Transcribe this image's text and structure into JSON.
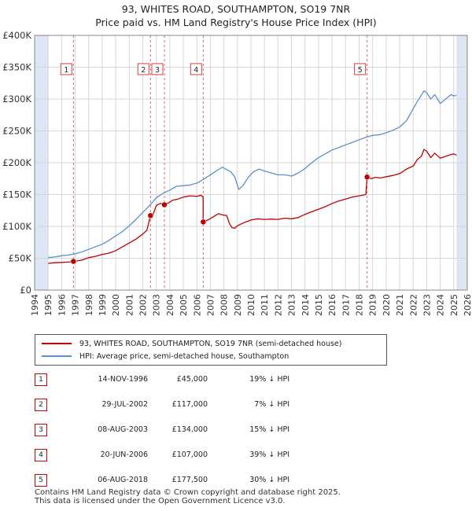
{
  "header": {
    "title": "93, WHITES ROAD, SOUTHAMPTON, SO19 7NR",
    "subtitle": "Price paid vs. HM Land Registry's House Price Index (HPI)"
  },
  "colors": {
    "price_line": "#c00000",
    "hpi_line": "#5b8fd0",
    "shade": "#dde6f4",
    "marker_border": "#d04040"
  },
  "chart_data": {
    "type": "line",
    "title": "Price paid vs. HM Land Registry's House Price Index (HPI)",
    "xlim": [
      1994,
      2026
    ],
    "ylim": [
      0,
      400000
    ],
    "x_ticks": [
      "1994",
      "1995",
      "1996",
      "1997",
      "1998",
      "1999",
      "2000",
      "2001",
      "2002",
      "2003",
      "2004",
      "2005",
      "2006",
      "2007",
      "2008",
      "2009",
      "2010",
      "2011",
      "2012",
      "2013",
      "2014",
      "2015",
      "2016",
      "2017",
      "2018",
      "2019",
      "2020",
      "2021",
      "2022",
      "2023",
      "2024",
      "2025",
      "2026"
    ],
    "y_ticks": [
      {
        "value": 0,
        "label": "£0"
      },
      {
        "value": 50000,
        "label": "£50K"
      },
      {
        "value": 100000,
        "label": "£100K"
      },
      {
        "value": 150000,
        "label": "£150K"
      },
      {
        "value": 200000,
        "label": "£200K"
      },
      {
        "value": 250000,
        "label": "£250K"
      },
      {
        "value": 300000,
        "label": "£300K"
      },
      {
        "value": 350000,
        "label": "£350K"
      },
      {
        "value": 400000,
        "label": "£400K"
      }
    ],
    "shaded_ranges": [
      [
        1994,
        1995.0
      ],
      [
        2025.2,
        2026
      ]
    ],
    "series": [
      {
        "name": "93, WHITES ROAD, SOUTHAMPTON, SO19 7NR (semi-detached house)",
        "x": [
          1995.0,
          1995.5,
          1996.0,
          1996.5,
          1996.87,
          1997.5,
          1998.0,
          1998.5,
          1999.0,
          1999.5,
          2000.0,
          2000.5,
          2001.0,
          2001.5,
          2002.0,
          2002.3,
          2002.57,
          2002.75,
          2003.0,
          2003.3,
          2003.6,
          2003.9,
          2004.2,
          2004.6,
          2005.0,
          2005.5,
          2006.0,
          2006.3,
          2006.46,
          2006.47,
          2006.8,
          2007.2,
          2007.6,
          2007.9,
          2008.2,
          2008.4,
          2008.6,
          2008.8,
          2009.0,
          2009.5,
          2010.0,
          2010.5,
          2011.0,
          2011.5,
          2012.0,
          2012.5,
          2013.0,
          2013.5,
          2014.0,
          2014.5,
          2015.0,
          2015.5,
          2016.0,
          2016.5,
          2017.0,
          2017.5,
          2018.0,
          2018.5,
          2018.59,
          2018.9,
          2019.2,
          2019.6,
          2020.0,
          2020.5,
          2021.0,
          2021.5,
          2022.0,
          2022.3,
          2022.6,
          2022.8,
          2023.0,
          2023.3,
          2023.6,
          2024.0,
          2024.4,
          2024.8,
          2025.0,
          2025.2
        ],
        "y": [
          42000,
          43000,
          43500,
          44000,
          45000,
          47000,
          51000,
          53000,
          56000,
          58000,
          62000,
          68000,
          74000,
          80000,
          88000,
          94000,
          117000,
          118000,
          133000,
          136000,
          134000,
          137000,
          141000,
          143000,
          146000,
          148000,
          147000,
          149000,
          146000,
          107000,
          110000,
          115000,
          120000,
          118000,
          117000,
          105000,
          98000,
          97000,
          101000,
          106000,
          110000,
          112000,
          111000,
          111500,
          111000,
          113000,
          112000,
          114000,
          119000,
          123000,
          127000,
          131000,
          136000,
          140000,
          143000,
          146000,
          148000,
          150000,
          177500,
          175000,
          177000,
          176000,
          178000,
          180000,
          183000,
          190000,
          195000,
          205000,
          210000,
          221000,
          218000,
          208000,
          215000,
          207000,
          210000,
          213000,
          214000,
          212000
        ]
      },
      {
        "name": "HPI: Average price, semi-detached house, Southampton",
        "x": [
          1995.0,
          1995.5,
          1996.0,
          1996.5,
          1997.0,
          1997.5,
          1998.0,
          1998.5,
          1999.0,
          1999.5,
          2000.0,
          2000.5,
          2001.0,
          2001.5,
          2002.0,
          2002.5,
          2003.0,
          2003.5,
          2004.0,
          2004.5,
          2005.0,
          2005.5,
          2006.0,
          2006.5,
          2007.0,
          2007.5,
          2007.9,
          2008.2,
          2008.5,
          2008.8,
          2009.1,
          2009.4,
          2009.8,
          2010.2,
          2010.6,
          2011.0,
          2011.5,
          2012.0,
          2012.5,
          2013.0,
          2013.5,
          2014.0,
          2014.5,
          2015.0,
          2015.5,
          2016.0,
          2016.5,
          2017.0,
          2017.5,
          2018.0,
          2018.5,
          2019.0,
          2019.5,
          2020.0,
          2020.5,
          2021.0,
          2021.5,
          2022.0,
          2022.3,
          2022.6,
          2022.8,
          2023.0,
          2023.3,
          2023.6,
          2024.0,
          2024.4,
          2024.8,
          2025.0,
          2025.2
        ],
        "y": [
          51000,
          52000,
          54000,
          55000,
          57000,
          60000,
          64000,
          68000,
          72000,
          78000,
          85000,
          92000,
          101000,
          111000,
          122000,
          133000,
          145000,
          152000,
          157000,
          163000,
          164000,
          165000,
          168000,
          174000,
          181000,
          188000,
          193000,
          189000,
          186000,
          178000,
          158000,
          164000,
          177000,
          186000,
          190000,
          187000,
          184000,
          181000,
          181000,
          179000,
          184000,
          191000,
          200000,
          208000,
          214000,
          220000,
          224000,
          228000,
          232000,
          236000,
          240000,
          243000,
          244000,
          247000,
          251000,
          256000,
          266000,
          285000,
          296000,
          306000,
          313000,
          310000,
          300000,
          307000,
          293000,
          300000,
          307000,
          305000,
          306000
        ]
      }
    ],
    "sale_markers": [
      {
        "label": "1",
        "x": 1996.87,
        "price": 45000,
        "box_value": 347000
      },
      {
        "label": "2",
        "x": 2002.57,
        "price": 117000,
        "box_value": 347000
      },
      {
        "label": "3",
        "x": 2003.6,
        "price": 134000,
        "box_value": 347000
      },
      {
        "label": "4",
        "x": 2006.47,
        "price": 107000,
        "box_value": 347000
      },
      {
        "label": "5",
        "x": 2018.59,
        "price": 177500,
        "box_value": 347000
      }
    ]
  },
  "legend": {
    "price_label": "93, WHITES ROAD, SOUTHAMPTON, SO19 7NR (semi-detached house)",
    "hpi_label": "HPI: Average price, semi-detached house, Southampton"
  },
  "transactions": [
    {
      "num": "1",
      "date": "14-NOV-1996",
      "price": "£45,000",
      "hpi": "19% ↓ HPI"
    },
    {
      "num": "2",
      "date": "29-JUL-2002",
      "price": "£117,000",
      "hpi": "7% ↓ HPI"
    },
    {
      "num": "3",
      "date": "08-AUG-2003",
      "price": "£134,000",
      "hpi": "15% ↓ HPI"
    },
    {
      "num": "4",
      "date": "20-JUN-2006",
      "price": "£107,000",
      "hpi": "39% ↓ HPI"
    },
    {
      "num": "5",
      "date": "06-AUG-2018",
      "price": "£177,500",
      "hpi": "30% ↓ HPI"
    }
  ],
  "footer": {
    "line1": "Contains HM Land Registry data © Crown copyright and database right 2025.",
    "line2": "This data is licensed under the Open Government Licence v3.0."
  }
}
